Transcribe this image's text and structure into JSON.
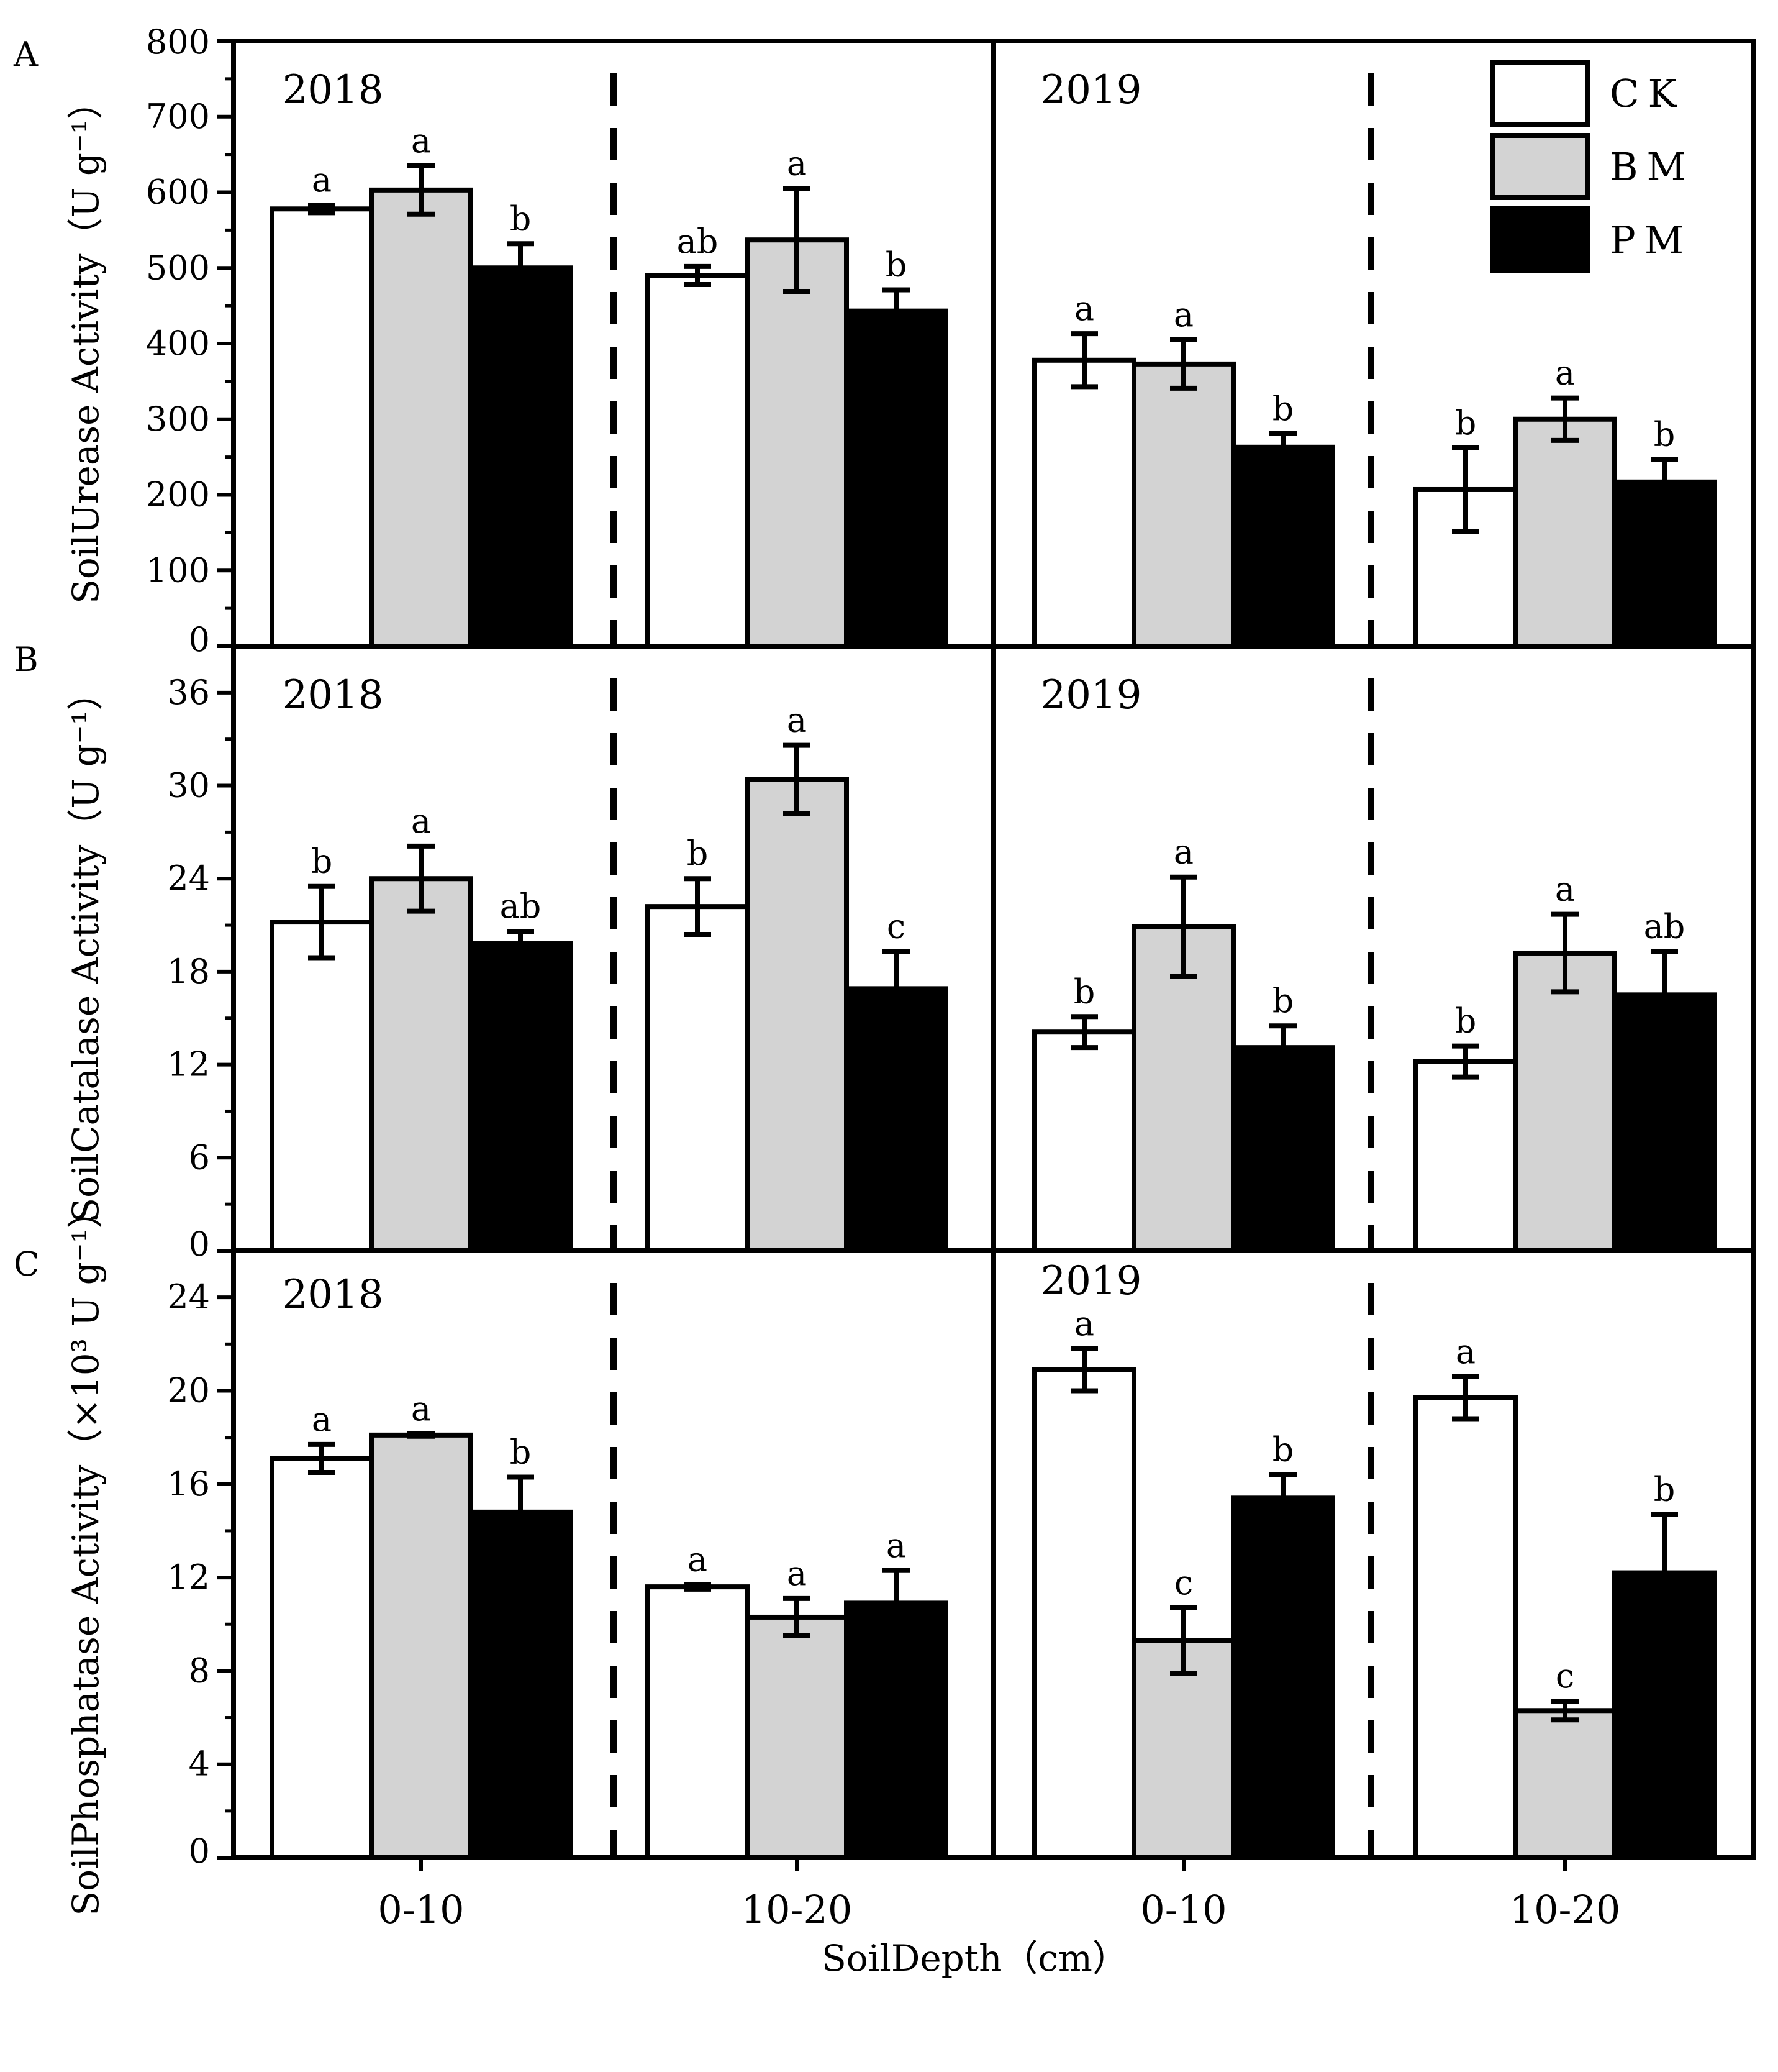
{
  "chart_data": {
    "type": "bar",
    "x_title": "SoilDepth（cm）",
    "years": [
      "2018",
      "2019"
    ],
    "depths": [
      "0-10",
      "10-20"
    ],
    "legend": [
      {
        "name": "CK",
        "color": "#ffffff"
      },
      {
        "name": "BM",
        "color": "#d3d3d3"
      },
      {
        "name": "PM",
        "color": "#000000"
      }
    ],
    "panels": [
      {
        "letter": "A",
        "ylabel": "SoilUrease Activity（U g⁻¹）",
        "ylim": [
          0,
          800
        ],
        "yticks": [
          0,
          100,
          200,
          300,
          400,
          500,
          600,
          700,
          800
        ],
        "groups": [
          {
            "year": "2018",
            "depth": "0-10",
            "values": [
              578,
              603,
              500
            ],
            "errors": [
              5,
              32,
              32
            ],
            "labels": [
              "a",
              "a",
              "b"
            ]
          },
          {
            "year": "2018",
            "depth": "10-20",
            "values": [
              490,
              537,
              443
            ],
            "errors": [
              12,
              68,
              28
            ],
            "labels": [
              "ab",
              "a",
              "b"
            ]
          },
          {
            "year": "2019",
            "depth": "0-10",
            "values": [
              378,
              373,
              263
            ],
            "errors": [
              35,
              32,
              18
            ],
            "labels": [
              "a",
              "a",
              "b"
            ]
          },
          {
            "year": "2019",
            "depth": "10-20",
            "values": [
              207,
              300,
              217
            ],
            "errors": [
              55,
              28,
              30
            ],
            "labels": [
              "b",
              "a",
              "b"
            ]
          }
        ]
      },
      {
        "letter": "B",
        "ylabel": "SoilCatalase Activity（U g⁻¹）",
        "ylim": [
          0,
          39
        ],
        "yticks": [
          0,
          6,
          12,
          18,
          24,
          30,
          36
        ],
        "groups": [
          {
            "year": "2018",
            "depth": "0-10",
            "values": [
              21.2,
              24.0,
              19.8
            ],
            "errors": [
              2.3,
              2.1,
              0.8
            ],
            "labels": [
              "b",
              "a",
              "ab"
            ]
          },
          {
            "year": "2018",
            "depth": "10-20",
            "values": [
              22.2,
              30.4,
              16.9
            ],
            "errors": [
              1.8,
              2.2,
              2.4
            ],
            "labels": [
              "b",
              "a",
              "c"
            ]
          },
          {
            "year": "2019",
            "depth": "0-10",
            "values": [
              14.1,
              20.9,
              13.1
            ],
            "errors": [
              1.0,
              3.2,
              1.4
            ],
            "labels": [
              "b",
              "a",
              "b"
            ]
          },
          {
            "year": "2019",
            "depth": "10-20",
            "values": [
              12.2,
              19.2,
              16.5
            ],
            "errors": [
              1.0,
              2.5,
              2.8
            ],
            "labels": [
              "b",
              "a",
              "ab"
            ]
          }
        ]
      },
      {
        "letter": "C",
        "ylabel": "SoilPhosphatase Activity（×10³ U g⁻¹）",
        "ylim": [
          0,
          26
        ],
        "yticks": [
          0,
          4,
          8,
          12,
          16,
          20,
          24
        ],
        "groups": [
          {
            "year": "2018",
            "depth": "0-10",
            "values": [
              17.1,
              18.1,
              14.8
            ],
            "errors": [
              0.6,
              0.05,
              1.5
            ],
            "labels": [
              "a",
              "a",
              "b"
            ]
          },
          {
            "year": "2018",
            "depth": "10-20",
            "values": [
              11.6,
              10.3,
              10.9
            ],
            "errors": [
              0.1,
              0.8,
              1.4
            ],
            "labels": [
              "a",
              "a",
              "a"
            ]
          },
          {
            "year": "2019",
            "depth": "0-10",
            "values": [
              20.9,
              9.3,
              15.4
            ],
            "errors": [
              0.9,
              1.4,
              1.0
            ],
            "labels": [
              "a",
              "c",
              "b"
            ]
          },
          {
            "year": "2019",
            "depth": "10-20",
            "values": [
              19.7,
              6.3,
              12.2
            ],
            "errors": [
              0.9,
              0.4,
              2.5
            ],
            "labels": [
              "a",
              "c",
              "b"
            ]
          }
        ]
      }
    ]
  }
}
